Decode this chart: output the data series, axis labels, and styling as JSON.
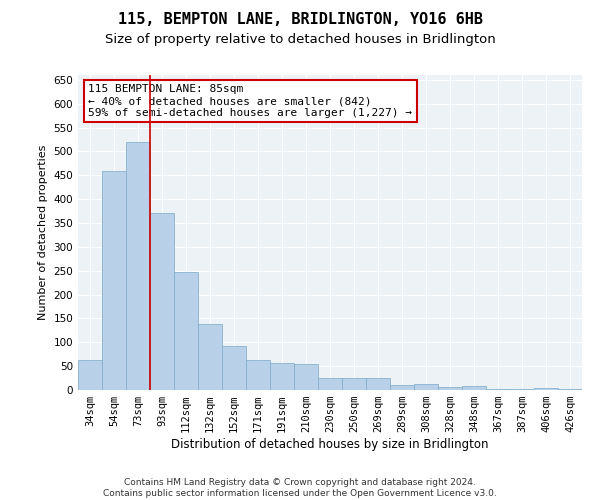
{
  "title": "115, BEMPTON LANE, BRIDLINGTON, YO16 6HB",
  "subtitle": "Size of property relative to detached houses in Bridlington",
  "xlabel": "Distribution of detached houses by size in Bridlington",
  "ylabel": "Number of detached properties",
  "categories": [
    "34sqm",
    "54sqm",
    "73sqm",
    "93sqm",
    "112sqm",
    "132sqm",
    "152sqm",
    "171sqm",
    "191sqm",
    "210sqm",
    "230sqm",
    "250sqm",
    "269sqm",
    "289sqm",
    "308sqm",
    "328sqm",
    "348sqm",
    "367sqm",
    "387sqm",
    "406sqm",
    "426sqm"
  ],
  "values": [
    62,
    458,
    520,
    370,
    248,
    138,
    92,
    62,
    57,
    55,
    25,
    25,
    25,
    11,
    12,
    6,
    9,
    3,
    3,
    5,
    3
  ],
  "bar_color": "#b8d0e8",
  "bar_edge_color": "#7aaac8",
  "vline_x": 2.5,
  "vline_color": "#cc0000",
  "annotation_text": "115 BEMPTON LANE: 85sqm\n← 40% of detached houses are smaller (842)\n59% of semi-detached houses are larger (1,227) →",
  "annotation_box_color": "#ffffff",
  "annotation_box_edge": "#cc0000",
  "ylim": [
    0,
    660
  ],
  "yticks": [
    0,
    50,
    100,
    150,
    200,
    250,
    300,
    350,
    400,
    450,
    500,
    550,
    600,
    650
  ],
  "bg_color": "#edf2f7",
  "footer": "Contains HM Land Registry data © Crown copyright and database right 2024.\nContains public sector information licensed under the Open Government Licence v3.0.",
  "title_fontsize": 11,
  "subtitle_fontsize": 9.5,
  "xlabel_fontsize": 8.5,
  "ylabel_fontsize": 8,
  "tick_fontsize": 7.5,
  "annot_fontsize": 8,
  "footer_fontsize": 6.5
}
